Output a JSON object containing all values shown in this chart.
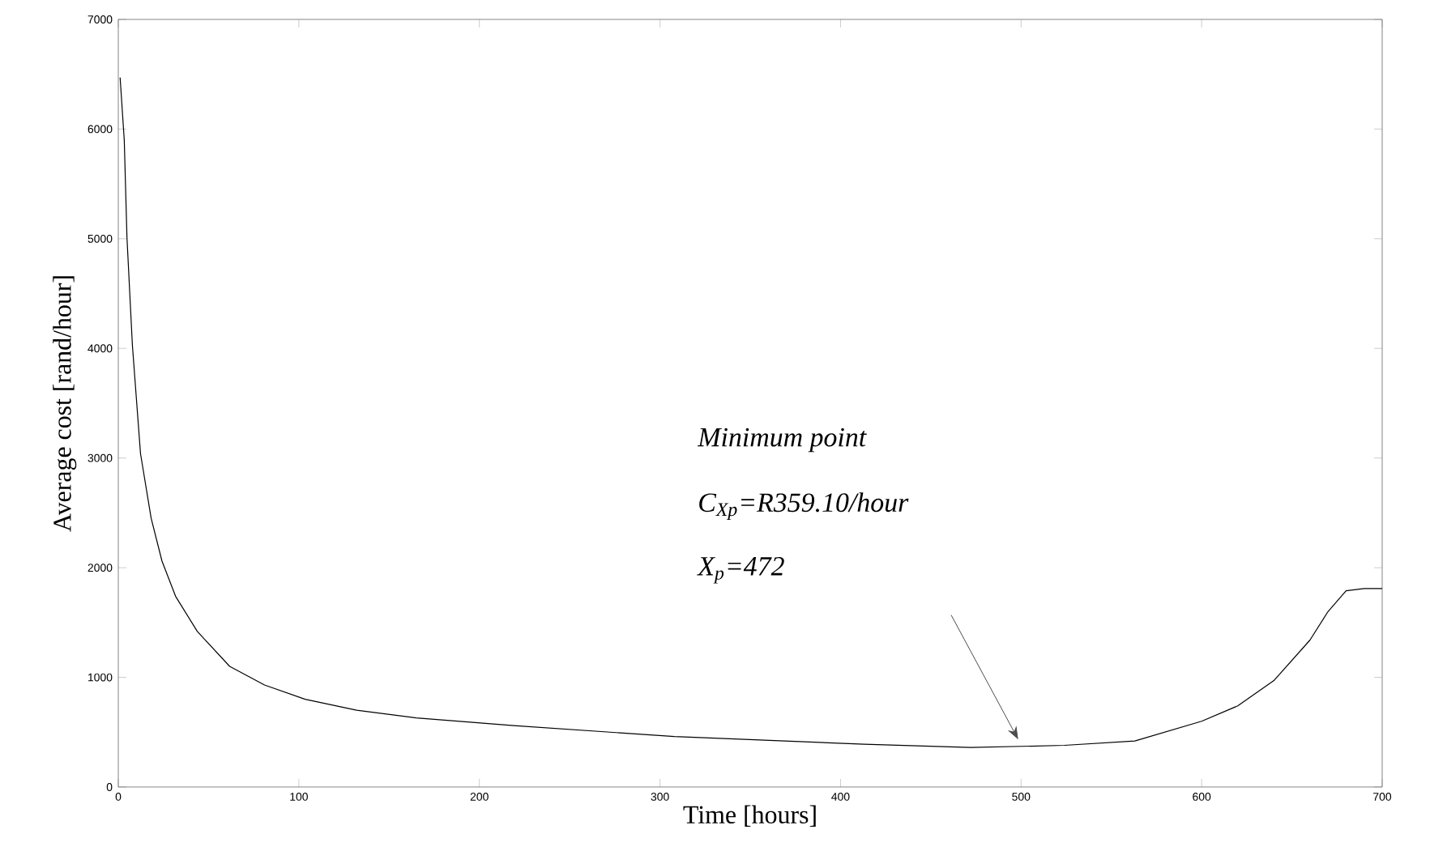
{
  "chart_data": {
    "type": "line",
    "xlabel": "Time [hours]",
    "ylabel": "Average cost [rand/hour]",
    "x": [
      1,
      3.3,
      4.8,
      7.8,
      12.3,
      18.2,
      24.2,
      31.7,
      43.7,
      61.7,
      81,
      103.5,
      132,
      165,
      219,
      308,
      413,
      472,
      524,
      563,
      600,
      620,
      640,
      660,
      670,
      680,
      690,
      700
    ],
    "series": [
      {
        "color": "#000000",
        "values": [
          6470,
          5900,
          5010,
          4030,
          3040,
          2450,
          2060,
          1740,
          1420,
          1100,
          930,
          800,
          700,
          630,
          560,
          460,
          390,
          360,
          380,
          420,
          600,
          740,
          970,
          1340,
          1600,
          1790,
          1810,
          1810
        ]
      }
    ],
    "xlim": [
      0,
      700
    ],
    "ylim": [
      0,
      7000
    ],
    "xticks": [
      0,
      100,
      200,
      300,
      400,
      500,
      600,
      700
    ],
    "yticks": [
      0,
      1000,
      2000,
      3000,
      4000,
      5000,
      6000,
      7000
    ],
    "grid": false,
    "marker": "none",
    "line_style": "solid",
    "annotations": [
      "Minimum point",
      "C$_{Xp}$=R359.10/hour",
      "X$_{p}$=472"
    ]
  }
}
